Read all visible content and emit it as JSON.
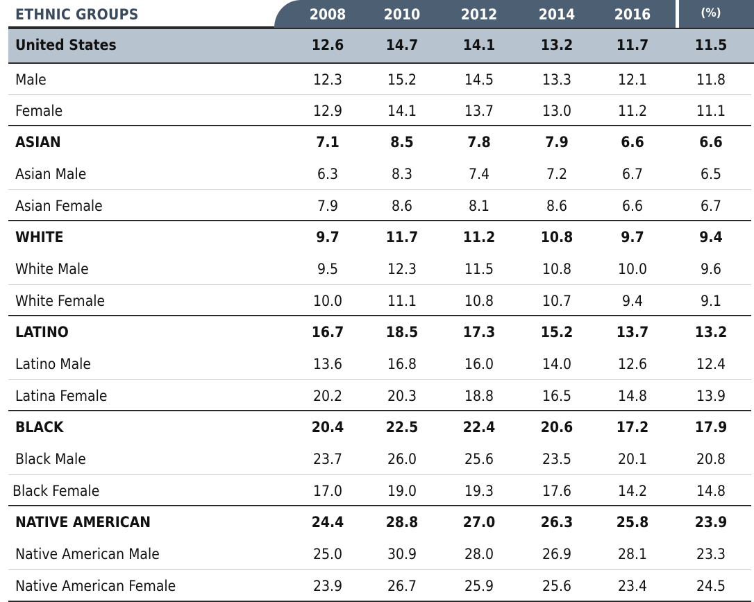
{
  "header": {
    "title": "ETHNIC GROUPS",
    "columns": [
      "2008",
      "2010",
      "2012",
      "2014",
      "2016",
      "(%)"
    ]
  },
  "rows": [
    {
      "label": "United States",
      "values": [
        "12.6",
        "14.7",
        "14.1",
        "13.2",
        "11.7",
        "11.5"
      ]
    },
    {
      "label": "Male",
      "values": [
        "12.3",
        "15.2",
        "14.5",
        "13.3",
        "12.1",
        "11.8"
      ]
    },
    {
      "label": "Female",
      "values": [
        "12.9",
        "14.1",
        "13.7",
        "13.0",
        "11.2",
        "11.1"
      ]
    },
    {
      "label": "ASIAN",
      "values": [
        "7.1",
        "8.5",
        "7.8",
        "7.9",
        "6.6",
        "6.6"
      ]
    },
    {
      "label": "Asian Male",
      "values": [
        "6.3",
        "8.3",
        "7.4",
        "7.2",
        "6.7",
        "6.5"
      ]
    },
    {
      "label": "Asian Female",
      "values": [
        "7.9",
        "8.6",
        "8.1",
        "8.6",
        "6.6",
        "6.7"
      ]
    },
    {
      "label": "WHITE",
      "values": [
        "9.7",
        "11.7",
        "11.2",
        "10.8",
        "9.7",
        "9.4"
      ]
    },
    {
      "label": "White Male",
      "values": [
        "9.5",
        "12.3",
        "11.5",
        "10.8",
        "10.0",
        "9.6"
      ]
    },
    {
      "label": "White Female",
      "values": [
        "10.0",
        "11.1",
        "10.8",
        "10.7",
        "9.4",
        "9.1"
      ]
    },
    {
      "label": "LATINO",
      "values": [
        "16.7",
        "18.5",
        "17.3",
        "15.2",
        "13.7",
        "13.2"
      ]
    },
    {
      "label": "Latino Male",
      "values": [
        "13.6",
        "16.8",
        "16.0",
        "14.0",
        "12.6",
        "12.4"
      ]
    },
    {
      "label": "Latina Female",
      "values": [
        "20.2",
        "20.3",
        "18.8",
        "16.5",
        "14.8",
        "13.9"
      ]
    },
    {
      "label": "BLACK",
      "values": [
        "20.4",
        "22.5",
        "22.4",
        "20.6",
        "17.2",
        "17.9"
      ]
    },
    {
      "label": "Black Male",
      "values": [
        "23.7",
        "26.0",
        "25.6",
        "23.5",
        "20.1",
        "20.8"
      ]
    },
    {
      "label": "Black Female",
      "values": [
        "17.0",
        "19.0",
        "19.3",
        "17.6",
        "14.2",
        "14.8"
      ]
    },
    {
      "label": "NATIVE AMERICAN",
      "values": [
        "24.4",
        "28.8",
        "27.0",
        "26.3",
        "25.8",
        "23.9"
      ]
    },
    {
      "label": "Native American Male",
      "values": [
        "25.0",
        "30.9",
        "28.0",
        "26.9",
        "28.1",
        "23.3"
      ]
    },
    {
      "label": "Native American Female",
      "values": [
        "23.9",
        "26.7",
        "25.9",
        "25.6",
        "23.4",
        "24.5"
      ]
    }
  ]
}
